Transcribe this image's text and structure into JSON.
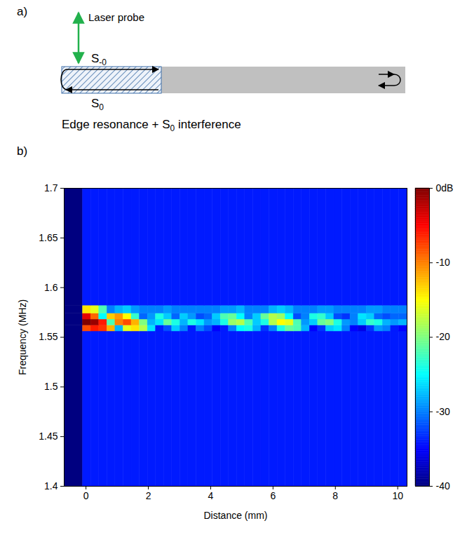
{
  "diagram": {
    "letter": "a)",
    "probe_label": "Laser probe",
    "top_wave": {
      "text": "S",
      "subscript": "-0"
    },
    "bottom_wave": {
      "text": "S",
      "subscript": "0"
    },
    "caption": [
      {
        "text": "Edge resonance + S"
      },
      {
        "text": "0",
        "subscript": true
      },
      {
        "text": " interference"
      }
    ]
  },
  "chart_data": {
    "type": "heatmap",
    "letter": "b)",
    "color": "jet",
    "x_label": "Distance (mm)",
    "y_label": "Frequency (MHz)",
    "xlim": [
      -0.7,
      10.3
    ],
    "xticks": [
      0,
      2,
      4,
      6,
      8,
      10
    ],
    "ylim": [
      1.4,
      1.7
    ],
    "yticks": [
      1.4,
      1.45,
      1.5,
      1.55,
      1.6,
      1.65,
      1.7
    ],
    "x_edges": [
      -0.7,
      -0.1,
      0.16,
      0.42,
      0.68,
      0.94,
      1.2,
      1.46,
      1.72,
      1.98,
      2.24,
      2.5,
      2.76,
      3.02,
      3.28,
      3.54,
      3.8,
      4.06,
      4.32,
      4.58,
      4.84,
      5.1,
      5.36,
      5.62,
      5.88,
      6.14,
      6.4,
      6.66,
      6.92,
      7.18,
      7.44,
      7.7,
      7.96,
      8.22,
      8.48,
      8.74,
      9.0,
      9.26,
      9.52,
      9.78,
      10.04,
      10.3
    ],
    "y_edges": [
      1.4,
      1.556,
      1.562,
      1.568,
      1.574,
      1.582,
      1.7
    ],
    "values": [
      [
        -40,
        -34,
        -34,
        -34,
        -34,
        -34,
        -34,
        -34,
        -34,
        -34,
        -34,
        -34,
        -34,
        -34,
        -34,
        -34,
        -34,
        -34,
        -34,
        -34,
        -34,
        -34,
        -34,
        -34,
        -34,
        -34,
        -34,
        -34,
        -34,
        -34,
        -34,
        -34,
        -34,
        -34,
        -34,
        -34,
        -34,
        -34,
        -34,
        -34,
        -34
      ],
      [
        -40,
        -8,
        -6,
        -7,
        -12,
        -28,
        -16,
        -14,
        -18,
        -26,
        -34,
        -32,
        -27,
        -30,
        -34,
        -30,
        -32,
        -35,
        -34,
        -30,
        -25,
        -24,
        -28,
        -33,
        -30,
        -24,
        -21,
        -22,
        -28,
        -35,
        -33,
        -27,
        -26,
        -30,
        -35,
        -36,
        -33,
        -29,
        -30,
        -34,
        -35
      ],
      [
        -40,
        0,
        -1,
        -6,
        -22,
        -10,
        -8,
        -12,
        -20,
        -28,
        -26,
        -21,
        -24,
        -28,
        -24,
        -26,
        -29,
        -28,
        -24,
        -19,
        -18,
        -22,
        -27,
        -24,
        -18,
        -15,
        -16,
        -22,
        -29,
        -27,
        -21,
        -20,
        -24,
        -29,
        -30,
        -27,
        -23,
        -24,
        -28,
        -29,
        -28
      ],
      [
        -40,
        -4,
        -9,
        -25,
        -13,
        -11,
        -15,
        -23,
        -31,
        -29,
        -24,
        -27,
        -31,
        -27,
        -29,
        -32,
        -31,
        -27,
        -22,
        -21,
        -25,
        -30,
        -27,
        -21,
        -18,
        -19,
        -25,
        -32,
        -30,
        -24,
        -23,
        -27,
        -32,
        -33,
        -30,
        -26,
        -27,
        -31,
        -32,
        -31,
        -31
      ],
      [
        -40,
        -14,
        -16,
        -22,
        -30,
        -28,
        -27,
        -29,
        -30,
        -30,
        -30,
        -29,
        -30,
        -30,
        -30,
        -30,
        -30,
        -30,
        -29,
        -29,
        -28,
        -30,
        -30,
        -30,
        -28,
        -27,
        -28,
        -30,
        -30,
        -30,
        -29,
        -29,
        -30,
        -30,
        -30,
        -30,
        -29,
        -29,
        -30,
        -30,
        -30
      ],
      [
        -40,
        -34,
        -34,
        -34,
        -34,
        -34,
        -34,
        -34,
        -34,
        -34,
        -34,
        -34,
        -34,
        -34,
        -34,
        -34,
        -34,
        -34,
        -34,
        -34,
        -34,
        -34,
        -34,
        -34,
        -34,
        -34,
        -34,
        -34,
        -34,
        -34,
        -34,
        -34,
        -34,
        -34,
        -34,
        -34,
        -34,
        -34,
        -34,
        -34,
        -34
      ]
    ],
    "colorbar": {
      "range": [
        -40,
        0
      ],
      "ticks": [
        {
          "value": 0,
          "label": "0dB"
        },
        -10,
        -20,
        -30,
        -40
      ]
    }
  }
}
